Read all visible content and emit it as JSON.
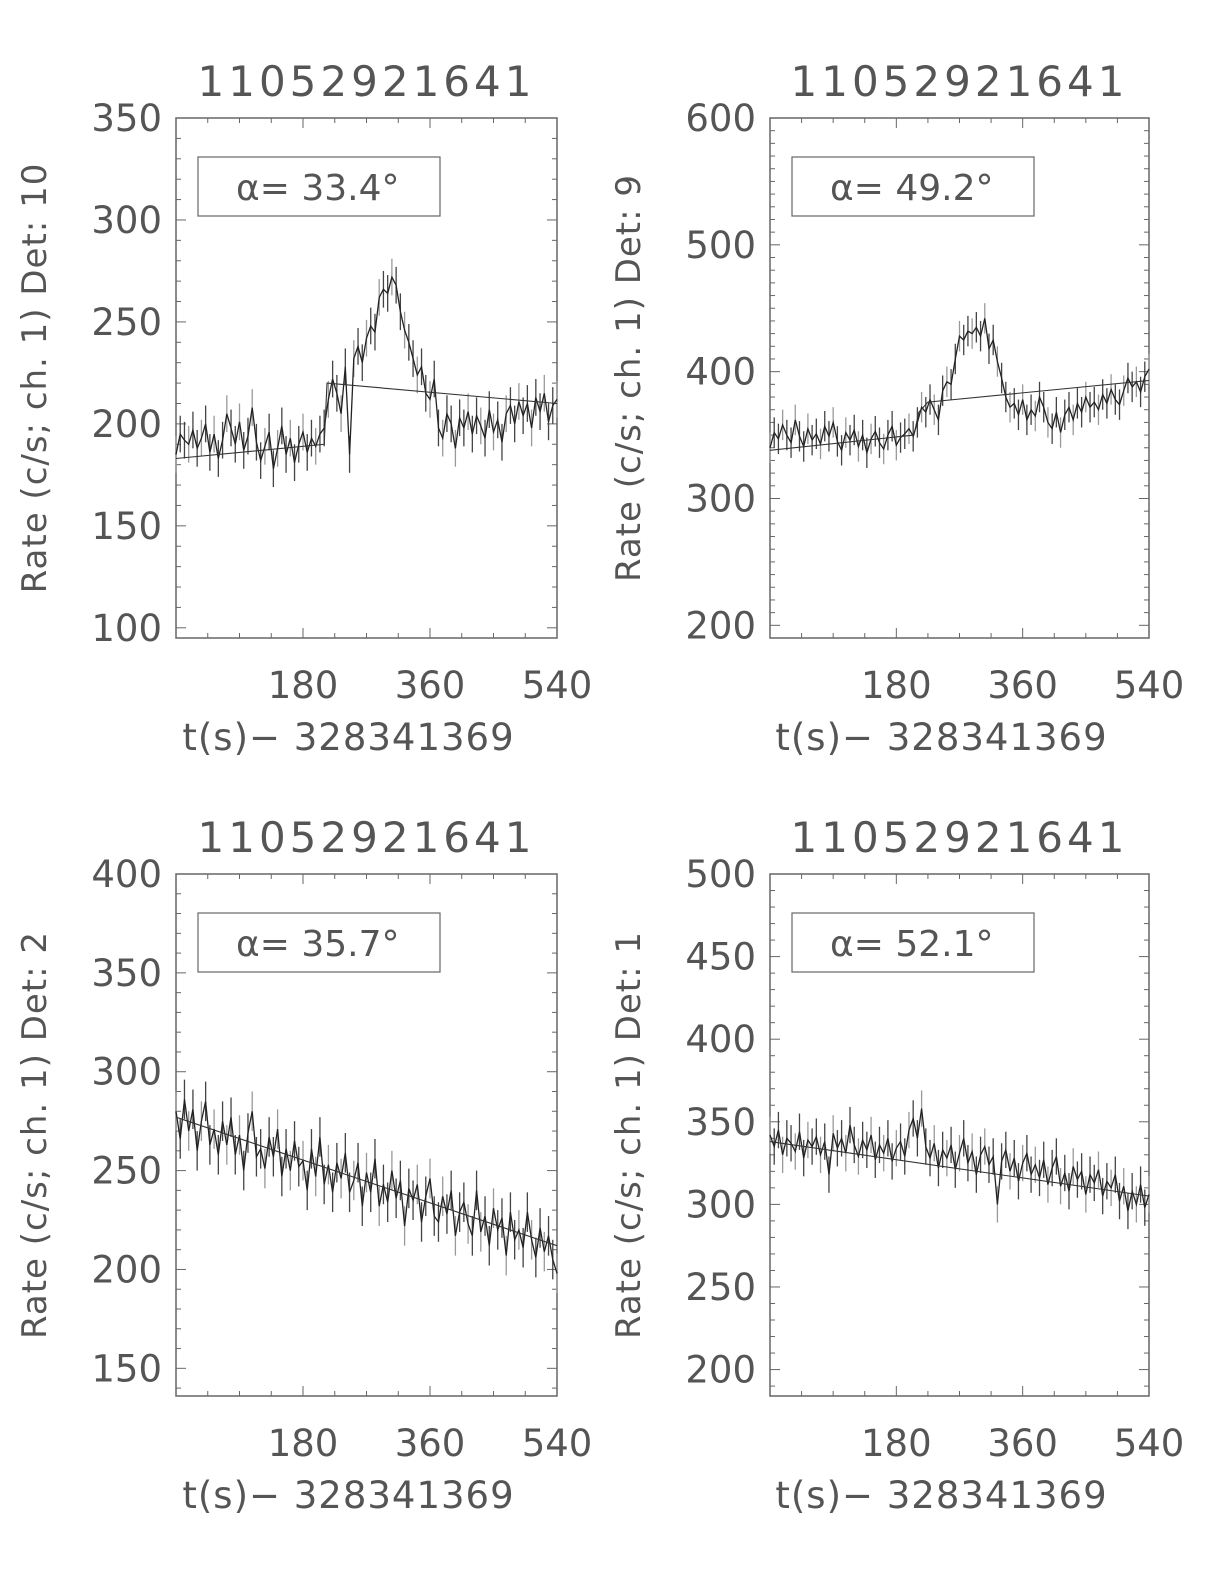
{
  "chart_data": [
    {
      "type": "line",
      "title": "11052921641",
      "xlabel": "t(s)− 328341369",
      "ylabel": "Rate (c/s; ch. 1) Det: 10",
      "legend": "α= 33.4°",
      "xlim": [
        0,
        540
      ],
      "ylim": [
        95,
        350
      ],
      "xticks": [
        180,
        360,
        540
      ],
      "yticks": [
        100,
        150,
        200,
        250,
        300,
        350
      ],
      "yerr": 9,
      "x_step": 6,
      "values": [
        185,
        195,
        192,
        190,
        197,
        188,
        193,
        200,
        186,
        195,
        183,
        192,
        205,
        198,
        190,
        201,
        187,
        194,
        208,
        191,
        182,
        189,
        196,
        178,
        188,
        199,
        185,
        193,
        181,
        190,
        196,
        186,
        193,
        189,
        195,
        198,
        212,
        222,
        215,
        205,
        228,
        185,
        232,
        238,
        230,
        242,
        248,
        245,
        262,
        266,
        264,
        272,
        268,
        255,
        246,
        240,
        232,
        224,
        228,
        215,
        212,
        222,
        198,
        193,
        205,
        200,
        188,
        203,
        198,
        206,
        195,
        204,
        199,
        193,
        207,
        196,
        202,
        191,
        205,
        209,
        200,
        211,
        204,
        210,
        198,
        213,
        206,
        215,
        201,
        209,
        212
      ],
      "fit": [
        [
          0,
          183
        ],
        [
          210,
          190
        ],
        [
          214,
          220
        ],
        [
          540,
          210
        ]
      ]
    },
    {
      "type": "line",
      "title": "11052921641",
      "xlabel": "t(s)− 328341369",
      "ylabel": "Rate (c/s; ch. 1) Det: 9",
      "legend": "α= 49.2°",
      "xlim": [
        0,
        540
      ],
      "ylim": [
        190,
        600
      ],
      "xticks": [
        180,
        360,
        540
      ],
      "yticks": [
        200,
        300,
        400,
        500,
        600
      ],
      "yerr": 12,
      "x_step": 6,
      "values": [
        340,
        352,
        347,
        358,
        350,
        344,
        362,
        349,
        341,
        355,
        346,
        351,
        343,
        357,
        349,
        360,
        345,
        338,
        352,
        346,
        354,
        341,
        350,
        336,
        347,
        353,
        344,
        339,
        350,
        357,
        342,
        348,
        351,
        355,
        349,
        360,
        372,
        368,
        378,
        370,
        362,
        385,
        392,
        390,
        410,
        428,
        425,
        432,
        430,
        435,
        428,
        442,
        418,
        425,
        408,
        395,
        380,
        372,
        375,
        366,
        378,
        362,
        370,
        365,
        380,
        372,
        360,
        355,
        368,
        352,
        366,
        372,
        362,
        375,
        368,
        380,
        372,
        376,
        370,
        382,
        375,
        386,
        378,
        374,
        385,
        395,
        388,
        392,
        384,
        396,
        402
      ],
      "fit": [
        [
          0,
          338
        ],
        [
          205,
          350
        ],
        [
          212,
          368
        ],
        [
          225,
          376
        ],
        [
          540,
          393
        ]
      ]
    },
    {
      "type": "line",
      "title": "11052921641",
      "xlabel": "t(s)− 328341369",
      "ylabel": "Rate (c/s; ch. 1) Det: 2",
      "legend": "α= 35.7°",
      "xlim": [
        0,
        540
      ],
      "ylim": [
        136,
        400
      ],
      "xticks": [
        180,
        360,
        540
      ],
      "yticks": [
        150,
        200,
        250,
        300,
        350,
        400
      ],
      "yerr": 10,
      "x_step": 6,
      "values": [
        280,
        266,
        286,
        270,
        281,
        260,
        275,
        285,
        263,
        271,
        258,
        275,
        263,
        277,
        258,
        268,
        250,
        269,
        280,
        257,
        261,
        251,
        267,
        257,
        271,
        247,
        261,
        250,
        265,
        252,
        255,
        240,
        261,
        247,
        267,
        243,
        253,
        239,
        254,
        246,
        259,
        239,
        245,
        254,
        232,
        249,
        239,
        256,
        232,
        243,
        234,
        250,
        236,
        245,
        222,
        241,
        235,
        243,
        224,
        237,
        246,
        227,
        224,
        237,
        228,
        240,
        217,
        229,
        234,
        223,
        217,
        240,
        219,
        227,
        212,
        231,
        220,
        226,
        207,
        229,
        215,
        220,
        211,
        229,
        215,
        206,
        221,
        209,
        217,
        205,
        198
      ],
      "fit": [
        [
          0,
          277
        ],
        [
          540,
          212
        ]
      ]
    },
    {
      "type": "line",
      "title": "11052921641",
      "xlabel": "t(s)− 328341369",
      "ylabel": "Rate (c/s; ch. 1) Det: 1",
      "legend": "α= 52.1°",
      "xlim": [
        0,
        540
      ],
      "ylim": [
        184,
        500
      ],
      "xticks": [
        180,
        360,
        540
      ],
      "yticks": [
        200,
        250,
        300,
        350,
        400,
        450,
        500
      ],
      "yerr": 11,
      "x_step": 6,
      "values": [
        342,
        335,
        345,
        330,
        340,
        337,
        332,
        344,
        328,
        339,
        335,
        341,
        330,
        338,
        318,
        343,
        334,
        340,
        331,
        348,
        336,
        329,
        339,
        333,
        342,
        327,
        336,
        331,
        340,
        326,
        334,
        338,
        329,
        345,
        352,
        340,
        358,
        335,
        328,
        337,
        322,
        333,
        328,
        336,
        321,
        331,
        340,
        325,
        332,
        318,
        330,
        335,
        324,
        329,
        300,
        326,
        333,
        320,
        328,
        314,
        325,
        331,
        318,
        324,
        316,
        327,
        312,
        322,
        329,
        311,
        319,
        308,
        323,
        315,
        320,
        306,
        318,
        313,
        321,
        305,
        314,
        310,
        318,
        302,
        311,
        296,
        308,
        300,
        312,
        298,
        306
      ],
      "fit": [
        [
          0,
          338
        ],
        [
          540,
          305
        ]
      ]
    }
  ]
}
